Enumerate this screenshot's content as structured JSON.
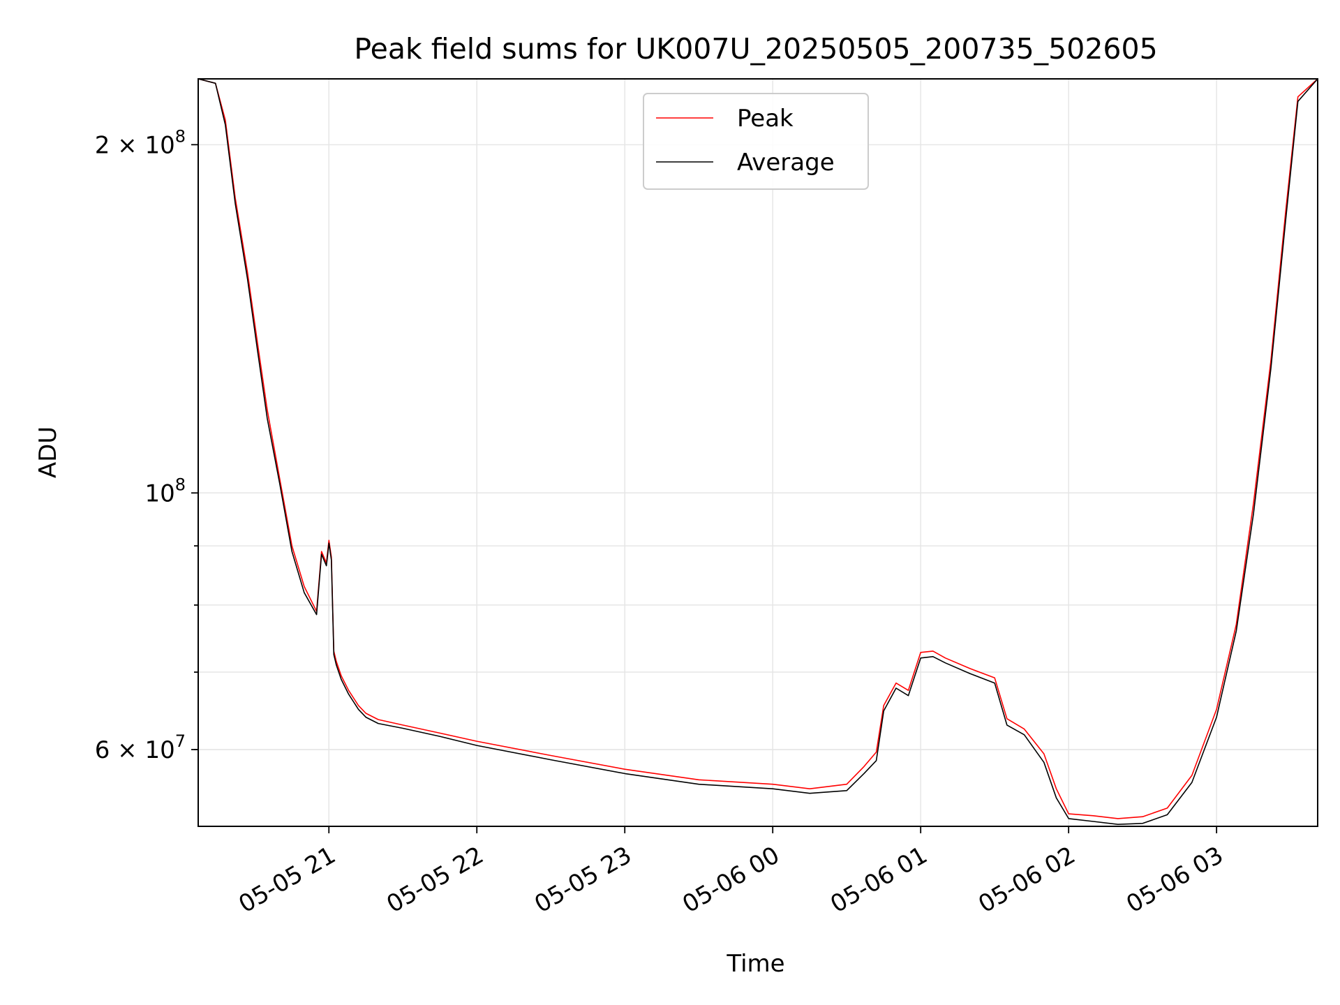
{
  "chart_data": {
    "type": "line",
    "title": "Peak field sums for UK007U_20250505_200735_502605",
    "xlabel": "Time",
    "ylabel": "ADU",
    "yscale": "log",
    "xlim": [
      "2025-05-05 20:07",
      "2025-05-06 03:41"
    ],
    "ylim": [
      51500000,
      228000000
    ],
    "x_tick_labels": [
      "05-05 21",
      "05-05 22",
      "05-05 23",
      "05-06 00",
      "05-06 01",
      "05-06 02",
      "05-06 03"
    ],
    "x_ticks": [
      "2025-05-05 21:00",
      "2025-05-05 22:00",
      "2025-05-05 23:00",
      "2025-05-06 00:00",
      "2025-05-06 01:00",
      "2025-05-06 02:00",
      "2025-05-06 03:00"
    ],
    "y_tick_labels": [
      {
        "value": 200000000,
        "base": "2 × 10",
        "exp": "8"
      },
      {
        "value": 100000000,
        "base": "10",
        "exp": "8"
      },
      {
        "value": 60000000,
        "base": "6 × 10",
        "exp": "7"
      }
    ],
    "y_minor_ticks": [
      60000000,
      70000000,
      80000000,
      90000000
    ],
    "grid": true,
    "legend_position": "top-center",
    "series": [
      {
        "name": "Peak",
        "color": "#ff0000",
        "x": [
          "2025-05-05 20:07",
          "2025-05-05 20:14",
          "2025-05-05 20:18",
          "2025-05-05 20:22",
          "2025-05-05 20:27",
          "2025-05-05 20:31",
          "2025-05-05 20:35",
          "2025-05-05 20:40",
          "2025-05-05 20:45",
          "2025-05-05 20:50",
          "2025-05-05 20:55",
          "2025-05-05 20:57",
          "2025-05-05 20:59",
          "2025-05-05 21:00",
          "2025-05-05 21:01",
          "2025-05-05 21:02",
          "2025-05-05 21:03",
          "2025-05-05 21:05",
          "2025-05-05 21:08",
          "2025-05-05 21:12",
          "2025-05-05 21:15",
          "2025-05-05 21:20",
          "2025-05-05 21:30",
          "2025-05-05 21:45",
          "2025-05-05 22:00",
          "2025-05-05 22:30",
          "2025-05-05 23:00",
          "2025-05-05 23:30",
          "2025-05-06 00:00",
          "2025-05-06 00:15",
          "2025-05-06 00:30",
          "2025-05-06 00:37",
          "2025-05-06 00:42",
          "2025-05-06 00:45",
          "2025-05-06 00:50",
          "2025-05-06 00:55",
          "2025-05-06 01:00",
          "2025-05-06 01:05",
          "2025-05-06 01:10",
          "2025-05-06 01:20",
          "2025-05-06 01:30",
          "2025-05-06 01:35",
          "2025-05-06 01:42",
          "2025-05-06 01:50",
          "2025-05-06 01:55",
          "2025-05-06 02:00",
          "2025-05-06 02:10",
          "2025-05-06 02:20",
          "2025-05-06 02:30",
          "2025-05-06 02:40",
          "2025-05-06 02:50",
          "2025-05-06 03:00",
          "2025-05-06 03:08",
          "2025-05-06 03:15",
          "2025-05-06 03:22",
          "2025-05-06 03:28",
          "2025-05-06 03:33",
          "2025-05-06 03:41"
        ],
        "values": [
          228000000,
          226000000,
          210000000,
          180000000,
          155000000,
          135000000,
          118000000,
          103000000,
          90000000,
          83000000,
          79000000,
          89000000,
          87000000,
          91000000,
          88000000,
          73000000,
          71500000,
          69500000,
          67500000,
          65500000,
          64500000,
          63700000,
          63000000,
          62000000,
          61000000,
          59300000,
          57700000,
          56500000,
          56000000,
          55500000,
          56000000,
          58000000,
          59700000,
          65500000,
          68500000,
          67500000,
          72800000,
          73000000,
          72000000,
          70500000,
          69200000,
          63800000,
          62500000,
          59500000,
          55500000,
          52800000,
          52600000,
          52300000,
          52500000,
          53400000,
          57000000,
          65000000,
          77000000,
          98000000,
          130000000,
          175000000,
          220000000,
          228000000
        ]
      },
      {
        "name": "Average",
        "color": "#000000",
        "x": [
          "2025-05-05 20:07",
          "2025-05-05 20:14",
          "2025-05-05 20:18",
          "2025-05-05 20:22",
          "2025-05-05 20:27",
          "2025-05-05 20:31",
          "2025-05-05 20:35",
          "2025-05-05 20:40",
          "2025-05-05 20:45",
          "2025-05-05 20:50",
          "2025-05-05 20:55",
          "2025-05-05 20:57",
          "2025-05-05 20:59",
          "2025-05-05 21:00",
          "2025-05-05 21:01",
          "2025-05-05 21:02",
          "2025-05-05 21:03",
          "2025-05-05 21:05",
          "2025-05-05 21:08",
          "2025-05-05 21:12",
          "2025-05-05 21:15",
          "2025-05-05 21:20",
          "2025-05-05 21:30",
          "2025-05-05 21:45",
          "2025-05-05 22:00",
          "2025-05-05 22:30",
          "2025-05-05 23:00",
          "2025-05-05 23:30",
          "2025-05-06 00:00",
          "2025-05-06 00:15",
          "2025-05-06 00:30",
          "2025-05-06 00:37",
          "2025-05-06 00:42",
          "2025-05-06 00:45",
          "2025-05-06 00:50",
          "2025-05-06 00:55",
          "2025-05-06 01:00",
          "2025-05-06 01:05",
          "2025-05-06 01:10",
          "2025-05-06 01:20",
          "2025-05-06 01:30",
          "2025-05-06 01:35",
          "2025-05-06 01:42",
          "2025-05-06 01:50",
          "2025-05-06 01:55",
          "2025-05-06 02:00",
          "2025-05-06 02:10",
          "2025-05-06 02:20",
          "2025-05-06 02:30",
          "2025-05-06 02:40",
          "2025-05-06 02:50",
          "2025-05-06 03:00",
          "2025-05-06 03:08",
          "2025-05-06 03:15",
          "2025-05-06 03:22",
          "2025-05-06 03:28",
          "2025-05-06 03:33",
          "2025-05-06 03:41"
        ],
        "values": [
          228000000,
          226000000,
          208000000,
          178000000,
          153000000,
          133000000,
          116000000,
          102000000,
          89000000,
          82000000,
          78500000,
          88500000,
          86500000,
          90500000,
          87500000,
          72500000,
          71000000,
          69000000,
          67000000,
          65000000,
          64000000,
          63200000,
          62600000,
          61600000,
          60500000,
          58800000,
          57200000,
          56000000,
          55500000,
          55000000,
          55300000,
          57200000,
          58700000,
          64800000,
          67800000,
          66800000,
          72000000,
          72200000,
          71300000,
          69800000,
          68500000,
          63000000,
          61800000,
          58500000,
          54500000,
          52300000,
          52000000,
          51700000,
          51800000,
          52700000,
          56200000,
          64000000,
          76000000,
          96000000,
          128000000,
          172000000,
          218000000,
          228000000
        ]
      }
    ]
  }
}
